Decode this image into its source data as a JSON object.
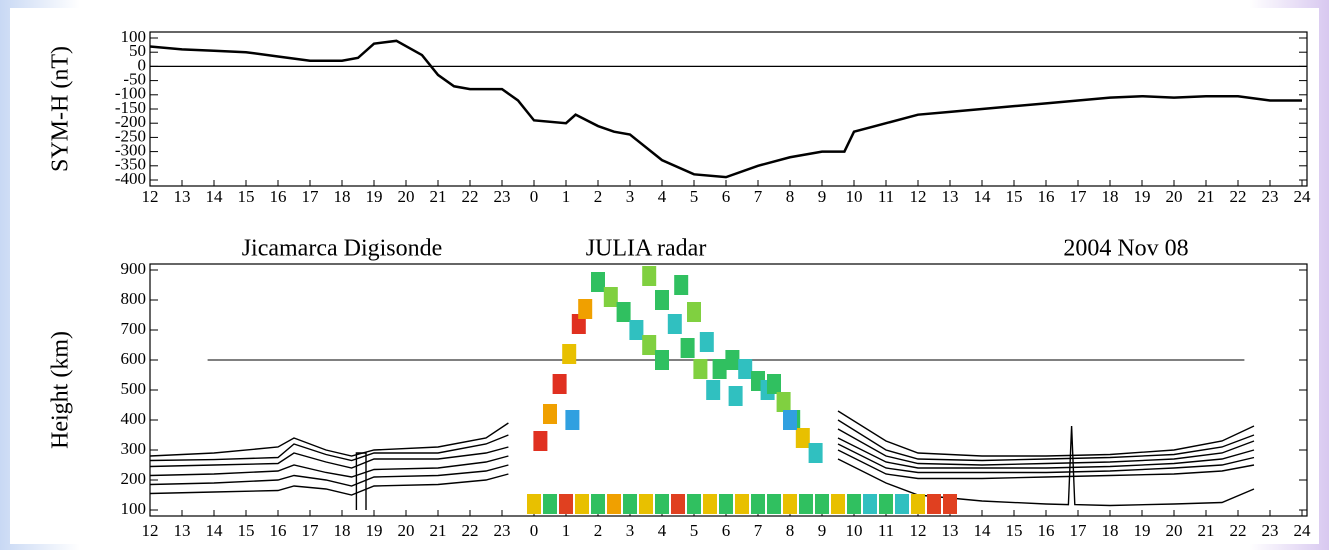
{
  "chart_data": [
    {
      "type": "line",
      "ylabel": "SYM-H (nT)",
      "color": "#000000",
      "x": [
        12,
        13,
        14,
        15,
        16,
        17,
        18,
        18.5,
        19,
        19.7,
        20.5,
        21,
        21.5,
        22,
        23,
        23.5,
        24,
        25,
        25.3,
        26,
        26.5,
        27,
        28,
        29,
        30,
        31,
        32,
        33,
        33.7,
        34,
        35,
        36,
        37,
        38,
        39,
        40,
        41,
        42,
        43,
        44,
        45,
        46,
        47,
        48
      ],
      "values": [
        70,
        60,
        55,
        50,
        35,
        20,
        20,
        30,
        80,
        90,
        40,
        -30,
        -70,
        -80,
        -80,
        -120,
        -190,
        -200,
        -170,
        -210,
        -230,
        -240,
        -330,
        -380,
        -390,
        -350,
        -320,
        -300,
        -300,
        -230,
        -200,
        -170,
        -160,
        -150,
        -140,
        -130,
        -120,
        -110,
        -105,
        -110,
        -105,
        -105,
        -120,
        -120
      ],
      "xlim": [
        12,
        48
      ],
      "xticks": [
        12,
        13,
        14,
        15,
        16,
        17,
        18,
        19,
        20,
        21,
        22,
        23,
        {
          "value": 24,
          "label": "0"
        },
        {
          "value": 25,
          "label": "1"
        },
        {
          "value": 26,
          "label": "2"
        },
        {
          "value": 27,
          "label": "3"
        },
        {
          "value": 28,
          "label": "4"
        },
        {
          "value": 29,
          "label": "5"
        },
        {
          "value": 30,
          "label": "6"
        },
        {
          "value": 31,
          "label": "7"
        },
        {
          "value": 32,
          "label": "8"
        },
        {
          "value": 33,
          "label": "9"
        },
        {
          "value": 34,
          "label": "10"
        },
        {
          "value": 35,
          "label": "11"
        },
        {
          "value": 36,
          "label": "12"
        },
        {
          "value": 37,
          "label": "13"
        },
        {
          "value": 38,
          "label": "14"
        },
        {
          "value": 39,
          "label": "15"
        },
        {
          "value": 40,
          "label": "16"
        },
        {
          "value": 41,
          "label": "17"
        },
        {
          "value": 42,
          "label": "18"
        },
        {
          "value": 43,
          "label": "19"
        },
        {
          "value": 44,
          "label": "20"
        },
        {
          "value": 45,
          "label": "21"
        },
        {
          "value": 46,
          "label": "22"
        },
        {
          "value": 47,
          "label": "23"
        },
        {
          "value": 48,
          "label": "24"
        }
      ],
      "ylim": [
        -400,
        100
      ],
      "yticks": [
        100,
        50,
        0,
        -50,
        -100,
        -150,
        -200,
        -250,
        -300,
        -350,
        -400
      ]
    },
    {
      "type": "rti",
      "ylabel": "Height (km)",
      "annotations": [
        "Jicamarca Digisonde",
        "JULIA radar",
        "2004 Nov 08"
      ],
      "xlim": [
        12,
        48
      ],
      "xticks": [
        12,
        13,
        14,
        15,
        16,
        17,
        18,
        19,
        20,
        21,
        22,
        23,
        {
          "value": 24,
          "label": "0"
        },
        {
          "value": 25,
          "label": "1"
        },
        {
          "value": 26,
          "label": "2"
        },
        {
          "value": 27,
          "label": "3"
        },
        {
          "value": 28,
          "label": "4"
        },
        {
          "value": 29,
          "label": "5"
        },
        {
          "value": 30,
          "label": "6"
        },
        {
          "value": 31,
          "label": "7"
        },
        {
          "value": 32,
          "label": "8"
        },
        {
          "value": 33,
          "label": "9"
        },
        {
          "value": 34,
          "label": "10"
        },
        {
          "value": 35,
          "label": "11"
        },
        {
          "value": 36,
          "label": "12"
        },
        {
          "value": 37,
          "label": "13"
        },
        {
          "value": 38,
          "label": "14"
        },
        {
          "value": 39,
          "label": "15"
        },
        {
          "value": 40,
          "label": "16"
        },
        {
          "value": 41,
          "label": "17"
        },
        {
          "value": 42,
          "label": "18"
        },
        {
          "value": 43,
          "label": "19"
        },
        {
          "value": 44,
          "label": "20"
        },
        {
          "value": 45,
          "label": "21"
        },
        {
          "value": 46,
          "label": "22"
        },
        {
          "value": 47,
          "label": "23"
        },
        {
          "value": 48,
          "label": "24"
        }
      ],
      "ylim": [
        100,
        900
      ],
      "yticks": [
        100,
        200,
        300,
        400,
        500,
        600,
        700,
        800,
        900
      ],
      "hline": {
        "value": 600,
        "x": [
          13.8,
          46.2
        ]
      },
      "contours": [
        {
          "x": [
            12,
            14,
            16,
            16.5,
            17.5,
            18.3,
            19,
            21,
            22.5,
            23.2
          ],
          "values": [
            280,
            290,
            310,
            340,
            300,
            280,
            300,
            310,
            340,
            390
          ]
        },
        {
          "x": [
            12,
            14,
            16,
            16.5,
            17.5,
            18.3,
            19,
            21,
            22.5,
            23.2
          ],
          "values": [
            265,
            268,
            275,
            320,
            285,
            265,
            290,
            290,
            320,
            350
          ]
        },
        {
          "x": [
            12,
            14,
            16,
            16.5,
            17.5,
            18.3,
            19,
            21,
            22.5,
            23.2
          ],
          "values": [
            245,
            250,
            255,
            290,
            260,
            240,
            270,
            270,
            290,
            310
          ]
        },
        {
          "x": [
            12,
            14,
            16,
            16.5,
            17.5,
            18.3,
            19,
            21,
            22.5,
            23.2
          ],
          "values": [
            215,
            220,
            230,
            250,
            225,
            210,
            235,
            240,
            260,
            280
          ]
        },
        {
          "x": [
            12,
            14,
            16,
            16.5,
            17.5,
            18.3,
            19,
            21,
            22.5,
            23.2
          ],
          "values": [
            185,
            190,
            200,
            215,
            200,
            180,
            210,
            215,
            230,
            250
          ]
        },
        {
          "x": [
            12,
            14,
            16,
            16.5,
            17.5,
            18.3,
            19,
            21,
            22.5,
            23.2
          ],
          "values": [
            155,
            160,
            165,
            180,
            170,
            150,
            180,
            185,
            200,
            220
          ]
        },
        {
          "x": [
            18.45,
            18.45,
            18.75,
            18.75
          ],
          "values": [
            100,
            290,
            290,
            100
          ]
        },
        {
          "x": [
            33.5,
            35,
            36,
            38,
            40,
            42,
            44,
            45.5,
            46.5
          ],
          "values": [
            430,
            330,
            290,
            280,
            280,
            285,
            300,
            330,
            380
          ]
        },
        {
          "x": [
            33.5,
            35,
            36,
            38,
            40,
            42,
            44,
            45.5,
            46.5
          ],
          "values": [
            400,
            300,
            270,
            265,
            270,
            275,
            285,
            310,
            350
          ]
        },
        {
          "x": [
            33.5,
            35,
            36,
            38,
            40,
            42,
            44,
            45.5,
            46.5
          ],
          "values": [
            370,
            280,
            255,
            250,
            255,
            260,
            270,
            290,
            330
          ]
        },
        {
          "x": [
            33.5,
            35,
            36,
            38,
            40,
            42,
            44,
            45.5,
            46.5
          ],
          "values": [
            340,
            260,
            240,
            240,
            240,
            245,
            255,
            270,
            300
          ]
        },
        {
          "x": [
            33.5,
            35,
            36,
            38,
            40,
            42,
            44,
            45.5,
            46.5
          ],
          "values": [
            320,
            240,
            225,
            225,
            225,
            230,
            240,
            250,
            275
          ]
        },
        {
          "x": [
            33.5,
            35,
            36,
            38,
            40,
            42,
            44,
            45.5,
            46.5
          ],
          "values": [
            300,
            220,
            205,
            205,
            210,
            215,
            220,
            230,
            250
          ]
        },
        {
          "x": [
            33.5,
            35,
            36,
            38,
            40,
            40.7,
            40.8,
            40.9,
            42,
            44,
            45.5,
            46.5
          ],
          "values": [
            270,
            190,
            150,
            130,
            120,
            118,
            380,
            118,
            115,
            120,
            125,
            170
          ]
        }
      ],
      "echoes": {
        "x": [
          24,
          24.5,
          25,
          25.5,
          26,
          26.5,
          27,
          27.5,
          28,
          28.5,
          29,
          29.5,
          30,
          30.5,
          31,
          31.5,
          32,
          32.5,
          33,
          33.5,
          34,
          34.5,
          35,
          35.5,
          36,
          36.5,
          37,
          24.2,
          24.5,
          24.8,
          25.1,
          25.4,
          25.6,
          26,
          26.4,
          26.8,
          27.2,
          27.6,
          28,
          27.6,
          28,
          28.4,
          28.8,
          29.2,
          29.6,
          28.6,
          29,
          29.4,
          29.8,
          30.3,
          30.2,
          30.6,
          31,
          31.3,
          31.5,
          31.8,
          32.1,
          32.4,
          32.8,
          25.2,
          32
        ],
        "values": [
          120,
          120,
          120,
          120,
          120,
          120,
          120,
          120,
          120,
          120,
          120,
          120,
          120,
          120,
          120,
          120,
          120,
          120,
          120,
          120,
          120,
          120,
          120,
          120,
          120,
          120,
          120,
          330,
          420,
          520,
          620,
          720,
          770,
          860,
          810,
          760,
          700,
          650,
          600,
          880,
          800,
          720,
          640,
          570,
          500,
          850,
          760,
          660,
          570,
          480,
          600,
          570,
          530,
          500,
          520,
          460,
          400,
          340,
          290,
          400,
          400
        ],
        "colors": [
          "#e8c000",
          "#30c060",
          "#e04020",
          "#e8c000",
          "#30c060",
          "#f0a000",
          "#30c060",
          "#e8c000",
          "#30c060",
          "#e04020",
          "#30c060",
          "#e8c000",
          "#30c060",
          "#e8c000",
          "#30c060",
          "#30c060",
          "#e8c000",
          "#30c060",
          "#30c060",
          "#e8c000",
          "#30c060",
          "#30c0c0",
          "#30c060",
          "#30c0c0",
          "#e8c000",
          "#e04020",
          "#e04020",
          "#e03020",
          "#f0a000",
          "#e03020",
          "#e8c000",
          "#e03020",
          "#f0a000",
          "#30c060",
          "#80d040",
          "#30c060",
          "#30c0c0",
          "#80d040",
          "#30c060",
          "#80d040",
          "#30c060",
          "#30c0c0",
          "#30c060",
          "#80d040",
          "#30c0c0",
          "#30c060",
          "#80d040",
          "#30c0c0",
          "#30c060",
          "#30c0c0",
          "#30c060",
          "#30c0c0",
          "#30c060",
          "#30c0c0",
          "#30c060",
          "#80d040",
          "#30c060",
          "#e8c000",
          "#30c0c0",
          "#30a0e0",
          "#30a0e0"
        ]
      }
    }
  ]
}
